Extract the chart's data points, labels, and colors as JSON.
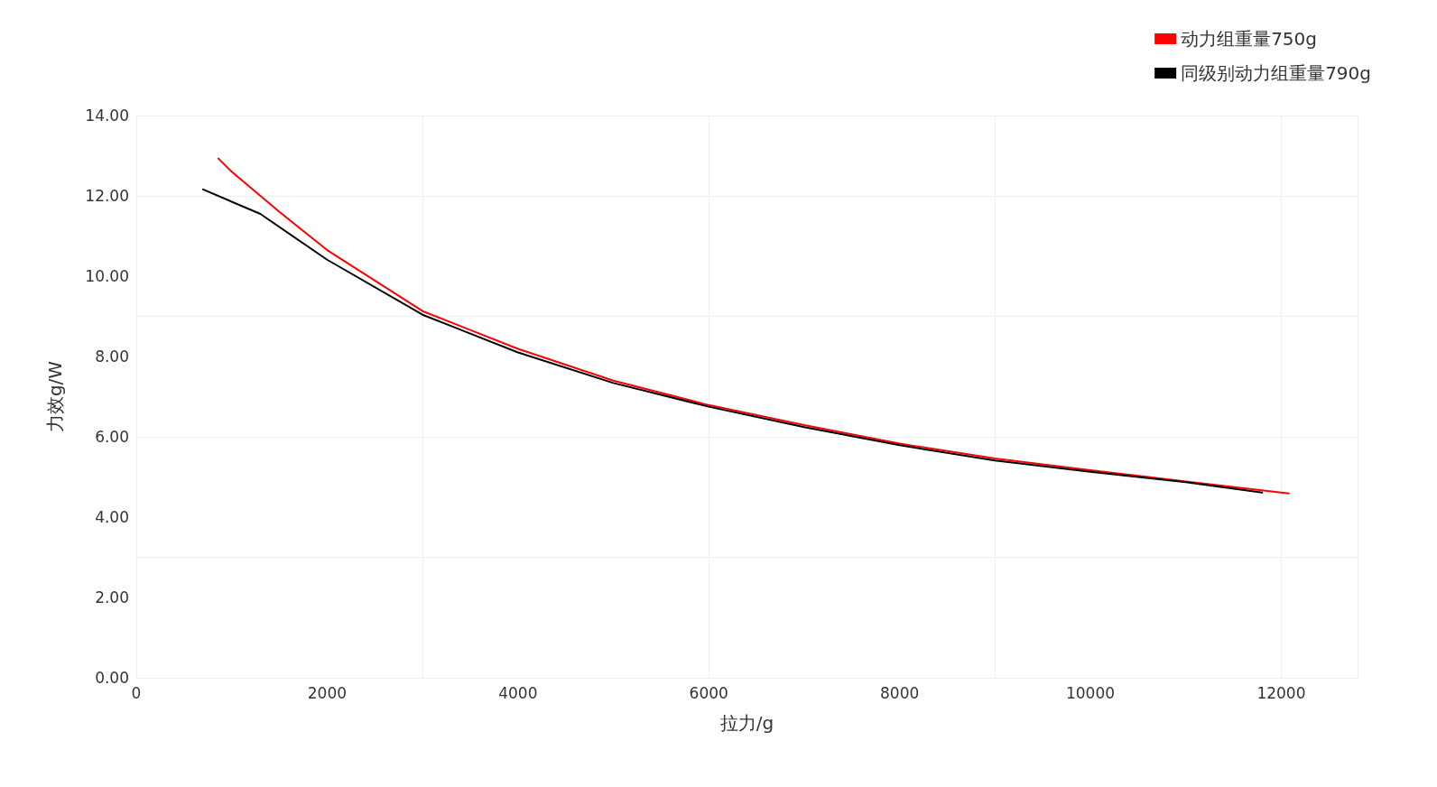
{
  "chart_data": {
    "type": "line",
    "xlabel": "拉力/g",
    "ylabel": "力效g/W",
    "xlim": [
      0,
      12800
    ],
    "xticks": [
      0,
      2000,
      4000,
      6000,
      8000,
      10000,
      12000
    ],
    "ylim": [
      0,
      14
    ],
    "yticks": [
      {
        "value": 0,
        "label": "0.00"
      },
      {
        "value": 2,
        "label": "2.00"
      },
      {
        "value": 4,
        "label": "4.00"
      },
      {
        "value": 6,
        "label": "6.00"
      },
      {
        "value": 8,
        "label": "8.00"
      },
      {
        "value": 10,
        "label": "10.00"
      },
      {
        "value": 12,
        "label": "12.00"
      },
      {
        "value": 14,
        "label": "14.00"
      }
    ],
    "grid": true,
    "legend": "top right",
    "marker": "none",
    "line_style": "solid",
    "series": [
      {
        "name": "动力组重量750g",
        "color": "#ff0000",
        "x": [
          860,
          1000,
          1500,
          2000,
          3000,
          4000,
          5000,
          6000,
          7000,
          8000,
          9000,
          10000,
          11000,
          12080
        ],
        "values": [
          12.93,
          12.6,
          11.6,
          10.65,
          9.13,
          8.19,
          7.4,
          6.79,
          6.29,
          5.83,
          5.46,
          5.17,
          4.89,
          4.59
        ]
      },
      {
        "name": "同级别动力组重量790g",
        "color": "#000000",
        "x": [
          700,
          1300,
          2000,
          3000,
          4000,
          5000,
          6000,
          7000,
          8000,
          9000,
          10000,
          11000,
          11800
        ],
        "values": [
          12.16,
          11.55,
          10.41,
          9.04,
          8.1,
          7.34,
          6.75,
          6.24,
          5.79,
          5.41,
          5.13,
          4.87,
          4.61
        ]
      }
    ]
  }
}
